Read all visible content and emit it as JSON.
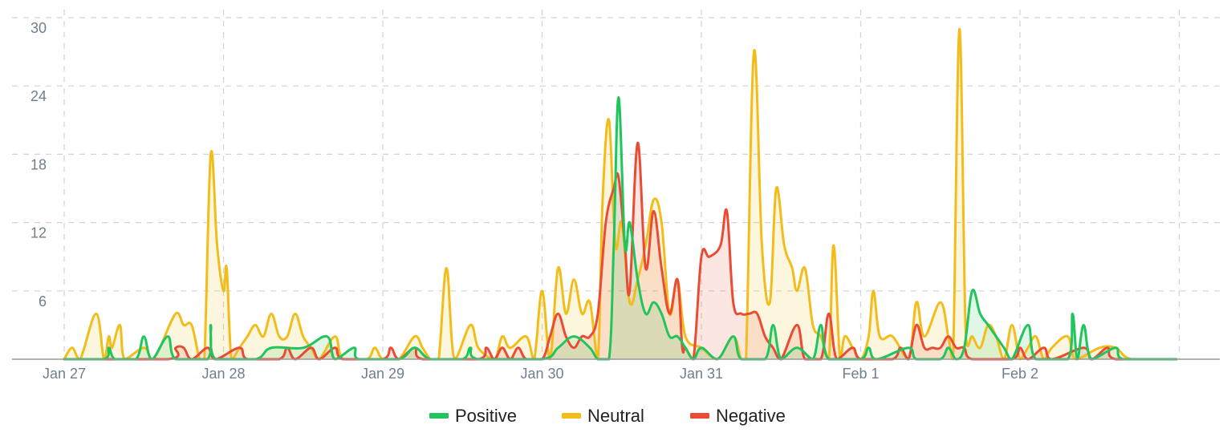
{
  "chart_data": {
    "type": "area",
    "title": "",
    "xlabel": "",
    "ylabel": "",
    "ylim": [
      0,
      30
    ],
    "yticks": [
      6,
      12,
      18,
      24,
      30
    ],
    "x_ticks": [
      {
        "label": "Jan 27",
        "day": 0
      },
      {
        "label": "Jan 28",
        "day": 1
      },
      {
        "label": "Jan 29",
        "day": 2
      },
      {
        "label": "Jan 30",
        "day": 3
      },
      {
        "label": "Jan 31",
        "day": 4
      },
      {
        "label": "Feb 1",
        "day": 5
      },
      {
        "label": "Feb 2",
        "day": 6
      }
    ],
    "grid": true,
    "legend_position": "bottom-center",
    "series": [
      {
        "name": "Positive",
        "color": "#21c45d",
        "points": [
          [
            0.0,
            0
          ],
          [
            0.25,
            0
          ],
          [
            0.28,
            1
          ],
          [
            0.32,
            0
          ],
          [
            0.45,
            0
          ],
          [
            0.5,
            2
          ],
          [
            0.55,
            0
          ],
          [
            0.65,
            2
          ],
          [
            0.7,
            0
          ],
          [
            0.9,
            0
          ],
          [
            0.92,
            3
          ],
          [
            0.95,
            0
          ],
          [
            1.2,
            0
          ],
          [
            1.3,
            1
          ],
          [
            1.5,
            1
          ],
          [
            1.65,
            2
          ],
          [
            1.7,
            0
          ],
          [
            1.82,
            1
          ],
          [
            1.85,
            0
          ],
          [
            2.1,
            0
          ],
          [
            2.2,
            1
          ],
          [
            2.3,
            0
          ],
          [
            2.5,
            0
          ],
          [
            2.55,
            1
          ],
          [
            2.6,
            0
          ],
          [
            3.0,
            0
          ],
          [
            3.1,
            1
          ],
          [
            3.2,
            2
          ],
          [
            3.3,
            1
          ],
          [
            3.35,
            0
          ],
          [
            3.42,
            0
          ],
          [
            3.45,
            10
          ],
          [
            3.48,
            23
          ],
          [
            3.52,
            10
          ],
          [
            3.55,
            12
          ],
          [
            3.6,
            7
          ],
          [
            3.65,
            4
          ],
          [
            3.7,
            5
          ],
          [
            3.75,
            4
          ],
          [
            3.8,
            2
          ],
          [
            3.85,
            2
          ],
          [
            3.9,
            1
          ],
          [
            3.95,
            0
          ],
          [
            4.0,
            1
          ],
          [
            4.1,
            0
          ],
          [
            4.2,
            2
          ],
          [
            4.25,
            0
          ],
          [
            4.4,
            0
          ],
          [
            4.45,
            3
          ],
          [
            4.5,
            0
          ],
          [
            4.6,
            1
          ],
          [
            4.7,
            0
          ],
          [
            4.75,
            3
          ],
          [
            4.8,
            0
          ],
          [
            5.0,
            0
          ],
          [
            5.05,
            1
          ],
          [
            5.1,
            0
          ],
          [
            5.3,
            1
          ],
          [
            5.35,
            0
          ],
          [
            5.5,
            0
          ],
          [
            5.55,
            1
          ],
          [
            5.6,
            0
          ],
          [
            5.65,
            1
          ],
          [
            5.7,
            6
          ],
          [
            5.75,
            4
          ],
          [
            5.8,
            3
          ],
          [
            5.9,
            1
          ],
          [
            5.95,
            0
          ],
          [
            6.05,
            3
          ],
          [
            6.1,
            0
          ],
          [
            6.3,
            0
          ],
          [
            6.33,
            4
          ],
          [
            6.36,
            0
          ],
          [
            6.4,
            3
          ],
          [
            6.45,
            0
          ],
          [
            6.6,
            1
          ],
          [
            6.65,
            0
          ],
          [
            6.95,
            0
          ]
        ]
      },
      {
        "name": "Neutral",
        "color": "#f2bd1b",
        "points": [
          [
            0.0,
            0
          ],
          [
            0.05,
            1
          ],
          [
            0.1,
            0
          ],
          [
            0.2,
            4
          ],
          [
            0.25,
            0
          ],
          [
            0.28,
            2
          ],
          [
            0.3,
            1
          ],
          [
            0.35,
            3
          ],
          [
            0.38,
            0
          ],
          [
            0.5,
            1
          ],
          [
            0.55,
            0
          ],
          [
            0.6,
            1
          ],
          [
            0.7,
            4
          ],
          [
            0.75,
            3
          ],
          [
            0.8,
            3
          ],
          [
            0.85,
            0
          ],
          [
            0.88,
            0
          ],
          [
            0.92,
            18
          ],
          [
            0.96,
            10
          ],
          [
            1.0,
            6
          ],
          [
            1.02,
            8
          ],
          [
            1.05,
            0
          ],
          [
            1.1,
            1
          ],
          [
            1.15,
            2
          ],
          [
            1.2,
            3
          ],
          [
            1.25,
            2
          ],
          [
            1.3,
            4
          ],
          [
            1.35,
            2
          ],
          [
            1.4,
            2
          ],
          [
            1.45,
            4
          ],
          [
            1.5,
            2
          ],
          [
            1.55,
            1
          ],
          [
            1.6,
            0
          ],
          [
            1.7,
            2
          ],
          [
            1.75,
            0
          ],
          [
            1.9,
            0
          ],
          [
            1.95,
            1
          ],
          [
            2.0,
            0
          ],
          [
            2.1,
            0
          ],
          [
            2.2,
            2
          ],
          [
            2.25,
            1
          ],
          [
            2.3,
            0
          ],
          [
            2.35,
            0
          ],
          [
            2.4,
            8
          ],
          [
            2.45,
            0
          ],
          [
            2.55,
            3
          ],
          [
            2.6,
            1
          ],
          [
            2.7,
            0
          ],
          [
            2.75,
            2
          ],
          [
            2.8,
            1
          ],
          [
            2.9,
            2
          ],
          [
            2.95,
            0
          ],
          [
            3.0,
            6
          ],
          [
            3.05,
            0
          ],
          [
            3.1,
            8
          ],
          [
            3.15,
            4
          ],
          [
            3.2,
            7
          ],
          [
            3.25,
            4
          ],
          [
            3.3,
            5
          ],
          [
            3.35,
            0
          ],
          [
            3.38,
            14
          ],
          [
            3.42,
            21
          ],
          [
            3.46,
            10
          ],
          [
            3.5,
            12
          ],
          [
            3.55,
            5
          ],
          [
            3.6,
            7
          ],
          [
            3.65,
            10
          ],
          [
            3.7,
            14
          ],
          [
            3.75,
            12
          ],
          [
            3.8,
            4
          ],
          [
            3.85,
            7
          ],
          [
            3.9,
            2
          ],
          [
            4.0,
            1
          ],
          [
            4.1,
            0
          ],
          [
            4.2,
            2
          ],
          [
            4.25,
            0
          ],
          [
            4.28,
            0
          ],
          [
            4.33,
            27
          ],
          [
            4.38,
            10
          ],
          [
            4.43,
            5
          ],
          [
            4.47,
            15
          ],
          [
            4.52,
            10
          ],
          [
            4.57,
            8
          ],
          [
            4.6,
            6
          ],
          [
            4.65,
            8
          ],
          [
            4.7,
            3
          ],
          [
            4.75,
            2
          ],
          [
            4.8,
            0
          ],
          [
            4.83,
            10
          ],
          [
            4.87,
            0
          ],
          [
            4.9,
            2
          ],
          [
            4.95,
            1
          ],
          [
            5.0,
            0
          ],
          [
            5.05,
            2
          ],
          [
            5.08,
            6
          ],
          [
            5.12,
            2
          ],
          [
            5.2,
            2
          ],
          [
            5.3,
            0
          ],
          [
            5.35,
            5
          ],
          [
            5.4,
            2
          ],
          [
            5.5,
            5
          ],
          [
            5.55,
            2
          ],
          [
            5.58,
            0
          ],
          [
            5.62,
            29
          ],
          [
            5.66,
            2
          ],
          [
            5.7,
            2
          ],
          [
            5.75,
            1
          ],
          [
            5.8,
            3
          ],
          [
            5.85,
            2
          ],
          [
            5.9,
            0
          ],
          [
            5.95,
            3
          ],
          [
            6.0,
            0
          ],
          [
            6.05,
            1
          ],
          [
            6.1,
            2
          ],
          [
            6.15,
            0
          ],
          [
            6.2,
            1
          ],
          [
            6.3,
            2
          ],
          [
            6.35,
            0
          ],
          [
            6.5,
            1
          ],
          [
            6.6,
            1
          ],
          [
            6.7,
            0
          ],
          [
            6.95,
            0
          ]
        ]
      },
      {
        "name": "Negative",
        "color": "#ea4b35",
        "points": [
          [
            0.0,
            0
          ],
          [
            0.65,
            0
          ],
          [
            0.7,
            1
          ],
          [
            0.75,
            1
          ],
          [
            0.8,
            0
          ],
          [
            0.9,
            1
          ],
          [
            0.95,
            0
          ],
          [
            1.1,
            1
          ],
          [
            1.15,
            0
          ],
          [
            1.35,
            0
          ],
          [
            1.4,
            1
          ],
          [
            1.45,
            0
          ],
          [
            1.55,
            1
          ],
          [
            1.6,
            0
          ],
          [
            1.7,
            1
          ],
          [
            1.75,
            0
          ],
          [
            2.0,
            0
          ],
          [
            2.05,
            1
          ],
          [
            2.1,
            0
          ],
          [
            2.2,
            1
          ],
          [
            2.25,
            0
          ],
          [
            2.6,
            0
          ],
          [
            2.65,
            1
          ],
          [
            2.7,
            0
          ],
          [
            2.75,
            1
          ],
          [
            2.8,
            0
          ],
          [
            2.85,
            1
          ],
          [
            2.9,
            0
          ],
          [
            3.0,
            0
          ],
          [
            3.05,
            2
          ],
          [
            3.1,
            4
          ],
          [
            3.15,
            2
          ],
          [
            3.2,
            1
          ],
          [
            3.25,
            2
          ],
          [
            3.3,
            2
          ],
          [
            3.35,
            4
          ],
          [
            3.4,
            12
          ],
          [
            3.45,
            15
          ],
          [
            3.48,
            16
          ],
          [
            3.52,
            10
          ],
          [
            3.55,
            6
          ],
          [
            3.6,
            19
          ],
          [
            3.65,
            8
          ],
          [
            3.7,
            13
          ],
          [
            3.75,
            8
          ],
          [
            3.8,
            4
          ],
          [
            3.85,
            7
          ],
          [
            3.88,
            1
          ],
          [
            3.9,
            1
          ],
          [
            3.95,
            0
          ],
          [
            4.0,
            9
          ],
          [
            4.05,
            9
          ],
          [
            4.12,
            10
          ],
          [
            4.16,
            13
          ],
          [
            4.2,
            5
          ],
          [
            4.25,
            4
          ],
          [
            4.3,
            4
          ],
          [
            4.35,
            4
          ],
          [
            4.4,
            2
          ],
          [
            4.45,
            1
          ],
          [
            4.5,
            0
          ],
          [
            4.6,
            3
          ],
          [
            4.65,
            0
          ],
          [
            4.75,
            0
          ],
          [
            4.8,
            4
          ],
          [
            4.85,
            0
          ],
          [
            4.95,
            1
          ],
          [
            5.0,
            0
          ],
          [
            5.2,
            0
          ],
          [
            5.25,
            1
          ],
          [
            5.3,
            0
          ],
          [
            5.35,
            3
          ],
          [
            5.4,
            1
          ],
          [
            5.45,
            1
          ],
          [
            5.5,
            1
          ],
          [
            5.55,
            2
          ],
          [
            5.6,
            1
          ],
          [
            5.65,
            1
          ],
          [
            5.7,
            0
          ],
          [
            5.95,
            0
          ],
          [
            6.0,
            1
          ],
          [
            6.05,
            0
          ],
          [
            6.15,
            1
          ],
          [
            6.2,
            0
          ],
          [
            6.4,
            1
          ],
          [
            6.45,
            0
          ],
          [
            6.55,
            1
          ],
          [
            6.6,
            0
          ],
          [
            6.95,
            0
          ]
        ]
      }
    ]
  }
}
